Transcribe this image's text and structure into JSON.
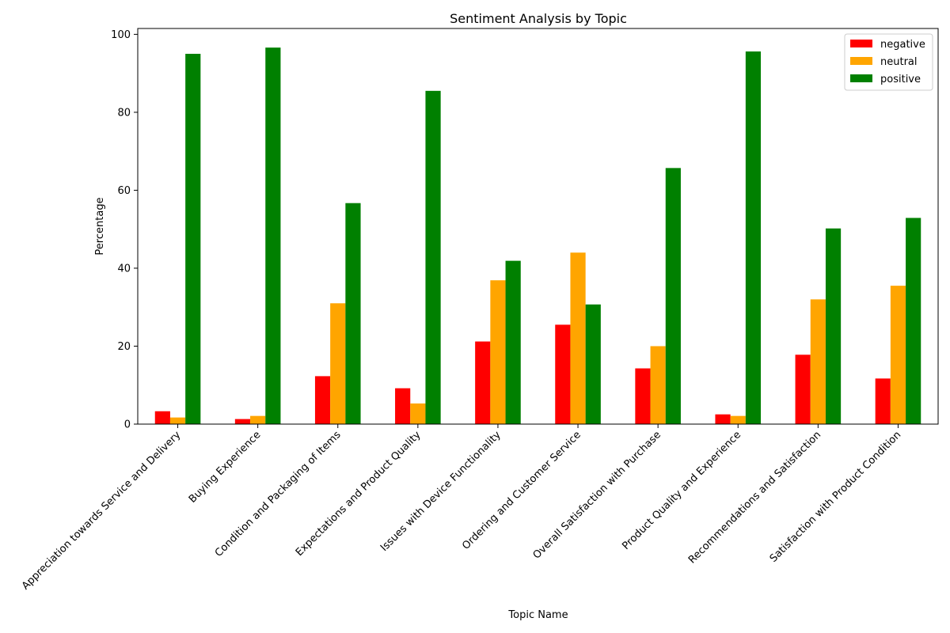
{
  "chart_data": {
    "type": "bar",
    "title": "Sentiment Analysis by Topic",
    "xlabel": "Topic Name",
    "ylabel": "Percentage",
    "ylim": [
      0,
      101.5
    ],
    "yticks": [
      0,
      20,
      40,
      60,
      80,
      100
    ],
    "grid": false,
    "legend_position": "top-right",
    "categories": [
      "Appreciation towards Service and Delivery",
      "Buying Experience",
      "Condition and Packaging of Items",
      "Expectations and Product Quality",
      "Issues with Device Functionality",
      "Ordering and Customer Service",
      "Overall Satisfaction with Purchase",
      "Product Quality and Experience",
      "Recommendations and Satisfaction",
      "Satisfaction with Product Condition"
    ],
    "series": [
      {
        "name": "negative",
        "color": "#ff0000",
        "values": [
          3.3,
          1.3,
          12.3,
          9.2,
          21.2,
          25.5,
          14.3,
          2.5,
          17.8,
          11.7
        ]
      },
      {
        "name": "neutral",
        "color": "#ffa500",
        "values": [
          1.7,
          2.1,
          31.0,
          5.3,
          36.9,
          44.0,
          20.0,
          2.1,
          32.0,
          35.5
        ]
      },
      {
        "name": "positive",
        "color": "#008000",
        "values": [
          95.0,
          96.6,
          56.7,
          85.5,
          41.9,
          30.7,
          65.7,
          95.6,
          50.2,
          52.9
        ]
      }
    ]
  }
}
